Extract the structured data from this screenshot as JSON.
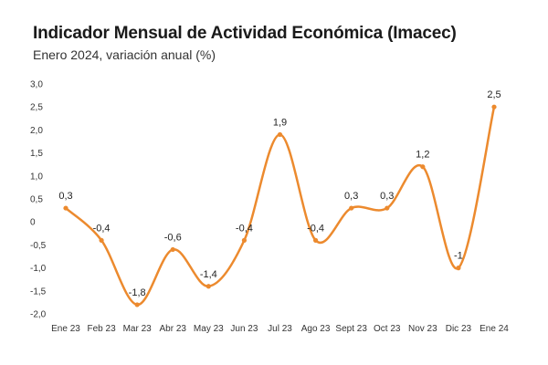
{
  "header": {
    "title": "Indicador Mensual de Actividad Económica (Imacec)",
    "subtitle": "Enero 2024, variación anual (%)"
  },
  "colors": {
    "line": "#ec8a2e",
    "point": "#ec8a2e",
    "text": "#222222"
  },
  "chart_data": {
    "type": "line",
    "title": "Indicador Mensual de Actividad Económica (Imacec)",
    "subtitle": "Enero 2024, variación anual (%)",
    "xlabel": "",
    "ylabel": "",
    "categories": [
      "Ene 23",
      "Feb 23",
      "Mar 23",
      "Abr 23",
      "May 23",
      "Jun 23",
      "Jul 23",
      "Ago 23",
      "Sept 23",
      "Oct 23",
      "Nov 23",
      "Dic 23",
      "Ene 24"
    ],
    "values": [
      0.3,
      -0.4,
      -1.8,
      -0.6,
      -1.4,
      -0.4,
      1.9,
      -0.4,
      0.3,
      0.3,
      1.2,
      -1,
      2.5
    ],
    "data_labels": [
      "0,3",
      "-0,4",
      "-1,8",
      "-0,6",
      "-1,4",
      "-0,4",
      "1,9",
      "-0,4",
      "0,3",
      "0,3",
      "1,2",
      "-1",
      "2,5"
    ],
    "ylim": [
      -2.0,
      3.0
    ],
    "yticks": [
      3.0,
      2.5,
      2.0,
      1.5,
      1.0,
      0.5,
      0,
      -0.5,
      -1.0,
      -1.5,
      -2.0
    ],
    "ytick_labels": [
      "3,0",
      "2,5",
      "2,0",
      "1,5",
      "1,0",
      "0,5",
      "0",
      "-0,5",
      "-1,0",
      "-1,5",
      "-2,0"
    ],
    "grid": false,
    "smooth": true
  }
}
